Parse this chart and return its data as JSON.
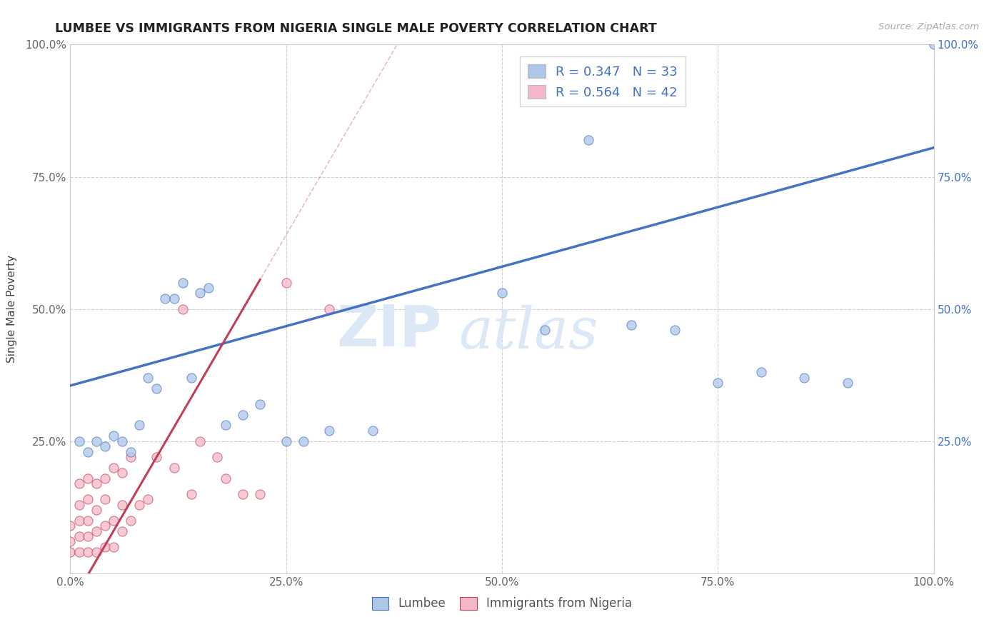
{
  "title": "LUMBEE VS IMMIGRANTS FROM NIGERIA SINGLE MALE POVERTY CORRELATION CHART",
  "source": "Source: ZipAtlas.com",
  "ylabel": "Single Male Poverty",
  "lumbee_R": 0.347,
  "lumbee_N": 33,
  "nigeria_R": 0.564,
  "nigeria_N": 42,
  "lumbee_color": "#aec6e8",
  "nigeria_color": "#f5b8c8",
  "lumbee_line_color": "#4472c4",
  "nigeria_line_color": "#c0405a",
  "watermark_color": "#dce8f5",
  "title_color": "#222222",
  "lumbee_x": [
    0.01,
    0.02,
    0.03,
    0.04,
    0.05,
    0.06,
    0.07,
    0.08,
    0.09,
    0.1,
    0.11,
    0.12,
    0.13,
    0.14,
    0.15,
    0.16,
    0.18,
    0.2,
    0.22,
    0.25,
    0.27,
    0.3,
    0.35,
    0.5,
    0.55,
    0.6,
    0.65,
    0.7,
    0.75,
    0.8,
    0.85,
    0.9,
    1.0
  ],
  "lumbee_y": [
    0.25,
    0.23,
    0.25,
    0.24,
    0.26,
    0.25,
    0.23,
    0.28,
    0.37,
    0.35,
    0.52,
    0.52,
    0.55,
    0.37,
    0.53,
    0.54,
    0.28,
    0.3,
    0.32,
    0.25,
    0.25,
    0.27,
    0.27,
    0.53,
    0.46,
    0.82,
    0.47,
    0.46,
    0.36,
    0.38,
    0.37,
    0.36,
    1.0
  ],
  "nigeria_x": [
    0.0,
    0.0,
    0.0,
    0.01,
    0.01,
    0.01,
    0.01,
    0.01,
    0.02,
    0.02,
    0.02,
    0.02,
    0.02,
    0.03,
    0.03,
    0.03,
    0.03,
    0.04,
    0.04,
    0.04,
    0.04,
    0.05,
    0.05,
    0.05,
    0.06,
    0.06,
    0.06,
    0.07,
    0.07,
    0.08,
    0.09,
    0.1,
    0.12,
    0.13,
    0.14,
    0.15,
    0.17,
    0.18,
    0.2,
    0.22,
    0.25,
    0.3
  ],
  "nigeria_y": [
    0.04,
    0.06,
    0.09,
    0.04,
    0.07,
    0.1,
    0.13,
    0.17,
    0.04,
    0.07,
    0.1,
    0.14,
    0.18,
    0.04,
    0.08,
    0.12,
    0.17,
    0.05,
    0.09,
    0.14,
    0.18,
    0.05,
    0.1,
    0.2,
    0.08,
    0.13,
    0.19,
    0.1,
    0.22,
    0.13,
    0.14,
    0.22,
    0.2,
    0.5,
    0.15,
    0.25,
    0.22,
    0.18,
    0.15,
    0.15,
    0.55,
    0.5
  ],
  "xlim": [
    0.0,
    1.0
  ],
  "ylim": [
    0.0,
    1.0
  ],
  "xtick_vals": [
    0.0,
    0.25,
    0.5,
    0.75,
    1.0
  ],
  "xtick_labels": [
    "0.0%",
    "25.0%",
    "50.0%",
    "75.0%",
    "100.0%"
  ],
  "ytick_vals": [
    0.0,
    0.25,
    0.5,
    0.75,
    1.0
  ],
  "ytick_labels": [
    "",
    "25.0%",
    "50.0%",
    "75.0%",
    "100.0%"
  ],
  "right_ytick_vals": [
    0.25,
    0.5,
    0.75,
    1.0
  ],
  "right_ytick_labels": [
    "25.0%",
    "50.0%",
    "75.0%",
    "100.0%"
  ]
}
